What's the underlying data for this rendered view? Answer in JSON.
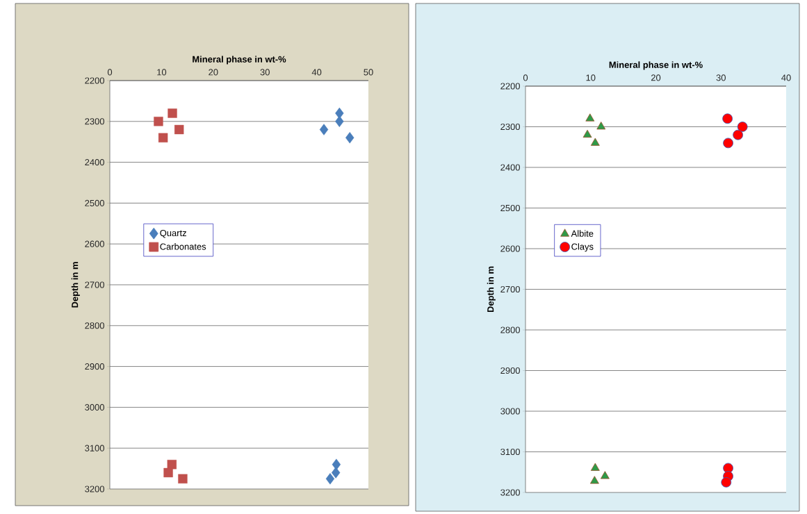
{
  "chart_data": [
    {
      "type": "scatter",
      "xlabel": "Mineral phase in wt-%",
      "ylabel": "Depth in m",
      "xlim": [
        0,
        50
      ],
      "xticks": [
        0,
        10,
        20,
        30,
        40,
        50
      ],
      "ylim": [
        3200,
        2200
      ],
      "yticks": [
        2200,
        2300,
        2400,
        2500,
        2600,
        2700,
        2800,
        2900,
        3000,
        3100,
        3200
      ],
      "grid": "y",
      "legend": "left",
      "series": [
        {
          "name": "Quartz",
          "color": "#4a7ebb",
          "marker": "diamond",
          "x": [
            44.4,
            44.4,
            41.4,
            46.4,
            43.8,
            43.7,
            42.6
          ],
          "values": [
            2280,
            2300,
            2320,
            2340,
            3140,
            3160,
            3175
          ]
        },
        {
          "name": "Carbonates",
          "color": "#c0504d",
          "marker": "square",
          "x": [
            12.1,
            9.4,
            13.4,
            10.3,
            12.0,
            11.3,
            14.1
          ],
          "values": [
            2280,
            2300,
            2320,
            2340,
            3140,
            3160,
            3175
          ]
        }
      ]
    },
    {
      "type": "scatter",
      "xlabel": "Mineral phase in wt-%",
      "ylabel": "Depth in m",
      "xlim": [
        0,
        40
      ],
      "xticks": [
        0,
        10,
        20,
        30,
        40
      ],
      "ylim": [
        3200,
        2200
      ],
      "yticks": [
        2200,
        2300,
        2400,
        2500,
        2600,
        2700,
        2800,
        2900,
        3000,
        3100,
        3200
      ],
      "grid": "y",
      "legend": "left",
      "series": [
        {
          "name": "Albite",
          "color": "#2e9a48",
          "marker": "triangle",
          "x": [
            9.9,
            11.6,
            9.5,
            10.7,
            10.7,
            12.2,
            10.6
          ],
          "values": [
            2280,
            2300,
            2320,
            2340,
            3140,
            3160,
            3172
          ]
        },
        {
          "name": "Clays",
          "color": "#ff0000",
          "marker": "circle",
          "x": [
            31.0,
            33.3,
            32.6,
            31.1,
            31.1,
            31.1,
            30.8
          ],
          "values": [
            2280,
            2300,
            2320,
            2340,
            3140,
            3160,
            3175
          ]
        }
      ]
    }
  ]
}
